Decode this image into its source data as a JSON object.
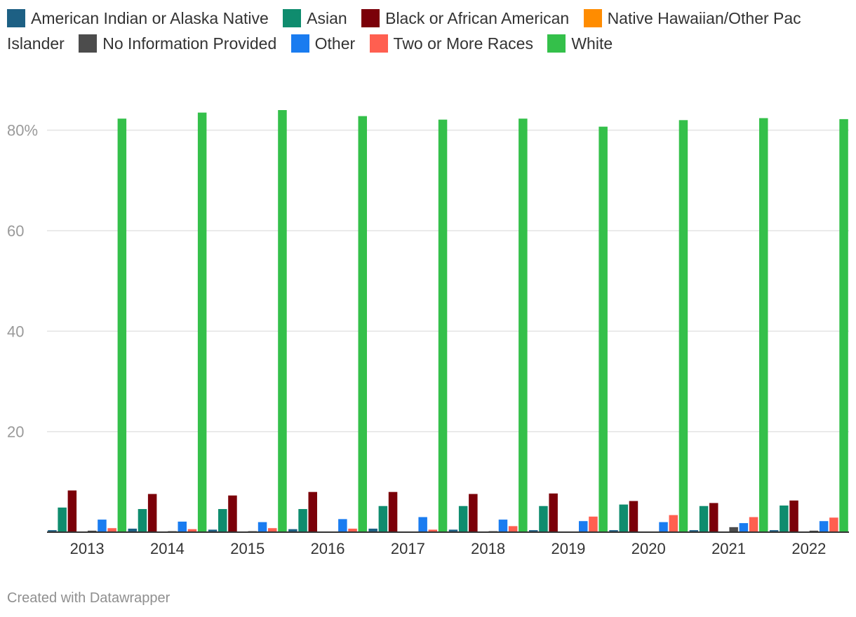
{
  "chart_data": {
    "type": "bar",
    "categories": [
      "2013",
      "2014",
      "2015",
      "2016",
      "2017",
      "2018",
      "2019",
      "2020",
      "2021",
      "2022"
    ],
    "series": [
      {
        "name": "American Indian or Alaska Native",
        "color": "#1d6084",
        "values": [
          0.4,
          0.7,
          0.5,
          0.6,
          0.7,
          0.5,
          0.4,
          0.4,
          0.4,
          0.4
        ]
      },
      {
        "name": "Asian",
        "color": "#0f8c6e",
        "values": [
          4.9,
          4.6,
          4.6,
          4.6,
          5.2,
          5.2,
          5.2,
          5.5,
          5.2,
          5.3
        ]
      },
      {
        "name": "Black or African American",
        "color": "#7b0009",
        "values": [
          8.3,
          7.6,
          7.3,
          8.0,
          8.0,
          7.6,
          7.7,
          6.2,
          5.8,
          6.3
        ]
      },
      {
        "name": "Native Hawaiian/Other Pac Islander",
        "color": "#ff8c00",
        "values": [
          0.1,
          0.1,
          0.1,
          0.1,
          0.1,
          0.1,
          0.1,
          0.1,
          0.1,
          0.1
        ]
      },
      {
        "name": "No Information Provided",
        "color": "#4c4c4c",
        "values": [
          0.3,
          0.2,
          0.2,
          0.0,
          0.0,
          0.2,
          0.0,
          0.0,
          1.0,
          0.3
        ]
      },
      {
        "name": "Other",
        "color": "#1a7cf0",
        "values": [
          2.5,
          2.1,
          2.0,
          2.6,
          3.0,
          2.5,
          2.2,
          2.0,
          1.8,
          2.2
        ]
      },
      {
        "name": "Two or More Races",
        "color": "#ff5f50",
        "values": [
          0.8,
          0.6,
          0.8,
          0.7,
          0.5,
          1.2,
          3.1,
          3.4,
          3.0,
          2.9
        ]
      },
      {
        "name": "White",
        "color": "#34c04a",
        "values": [
          82.3,
          83.5,
          84.0,
          82.8,
          82.1,
          82.3,
          80.7,
          82.0,
          82.4,
          82.2
        ]
      }
    ],
    "yticks": [
      {
        "value": 20,
        "label": "20"
      },
      {
        "value": 40,
        "label": "40"
      },
      {
        "value": 60,
        "label": "60"
      },
      {
        "value": 80,
        "label": "80%"
      }
    ],
    "ylim": [
      0,
      90
    ],
    "grid": true,
    "legend_position": "top"
  },
  "credit": "Created with Datawrapper"
}
